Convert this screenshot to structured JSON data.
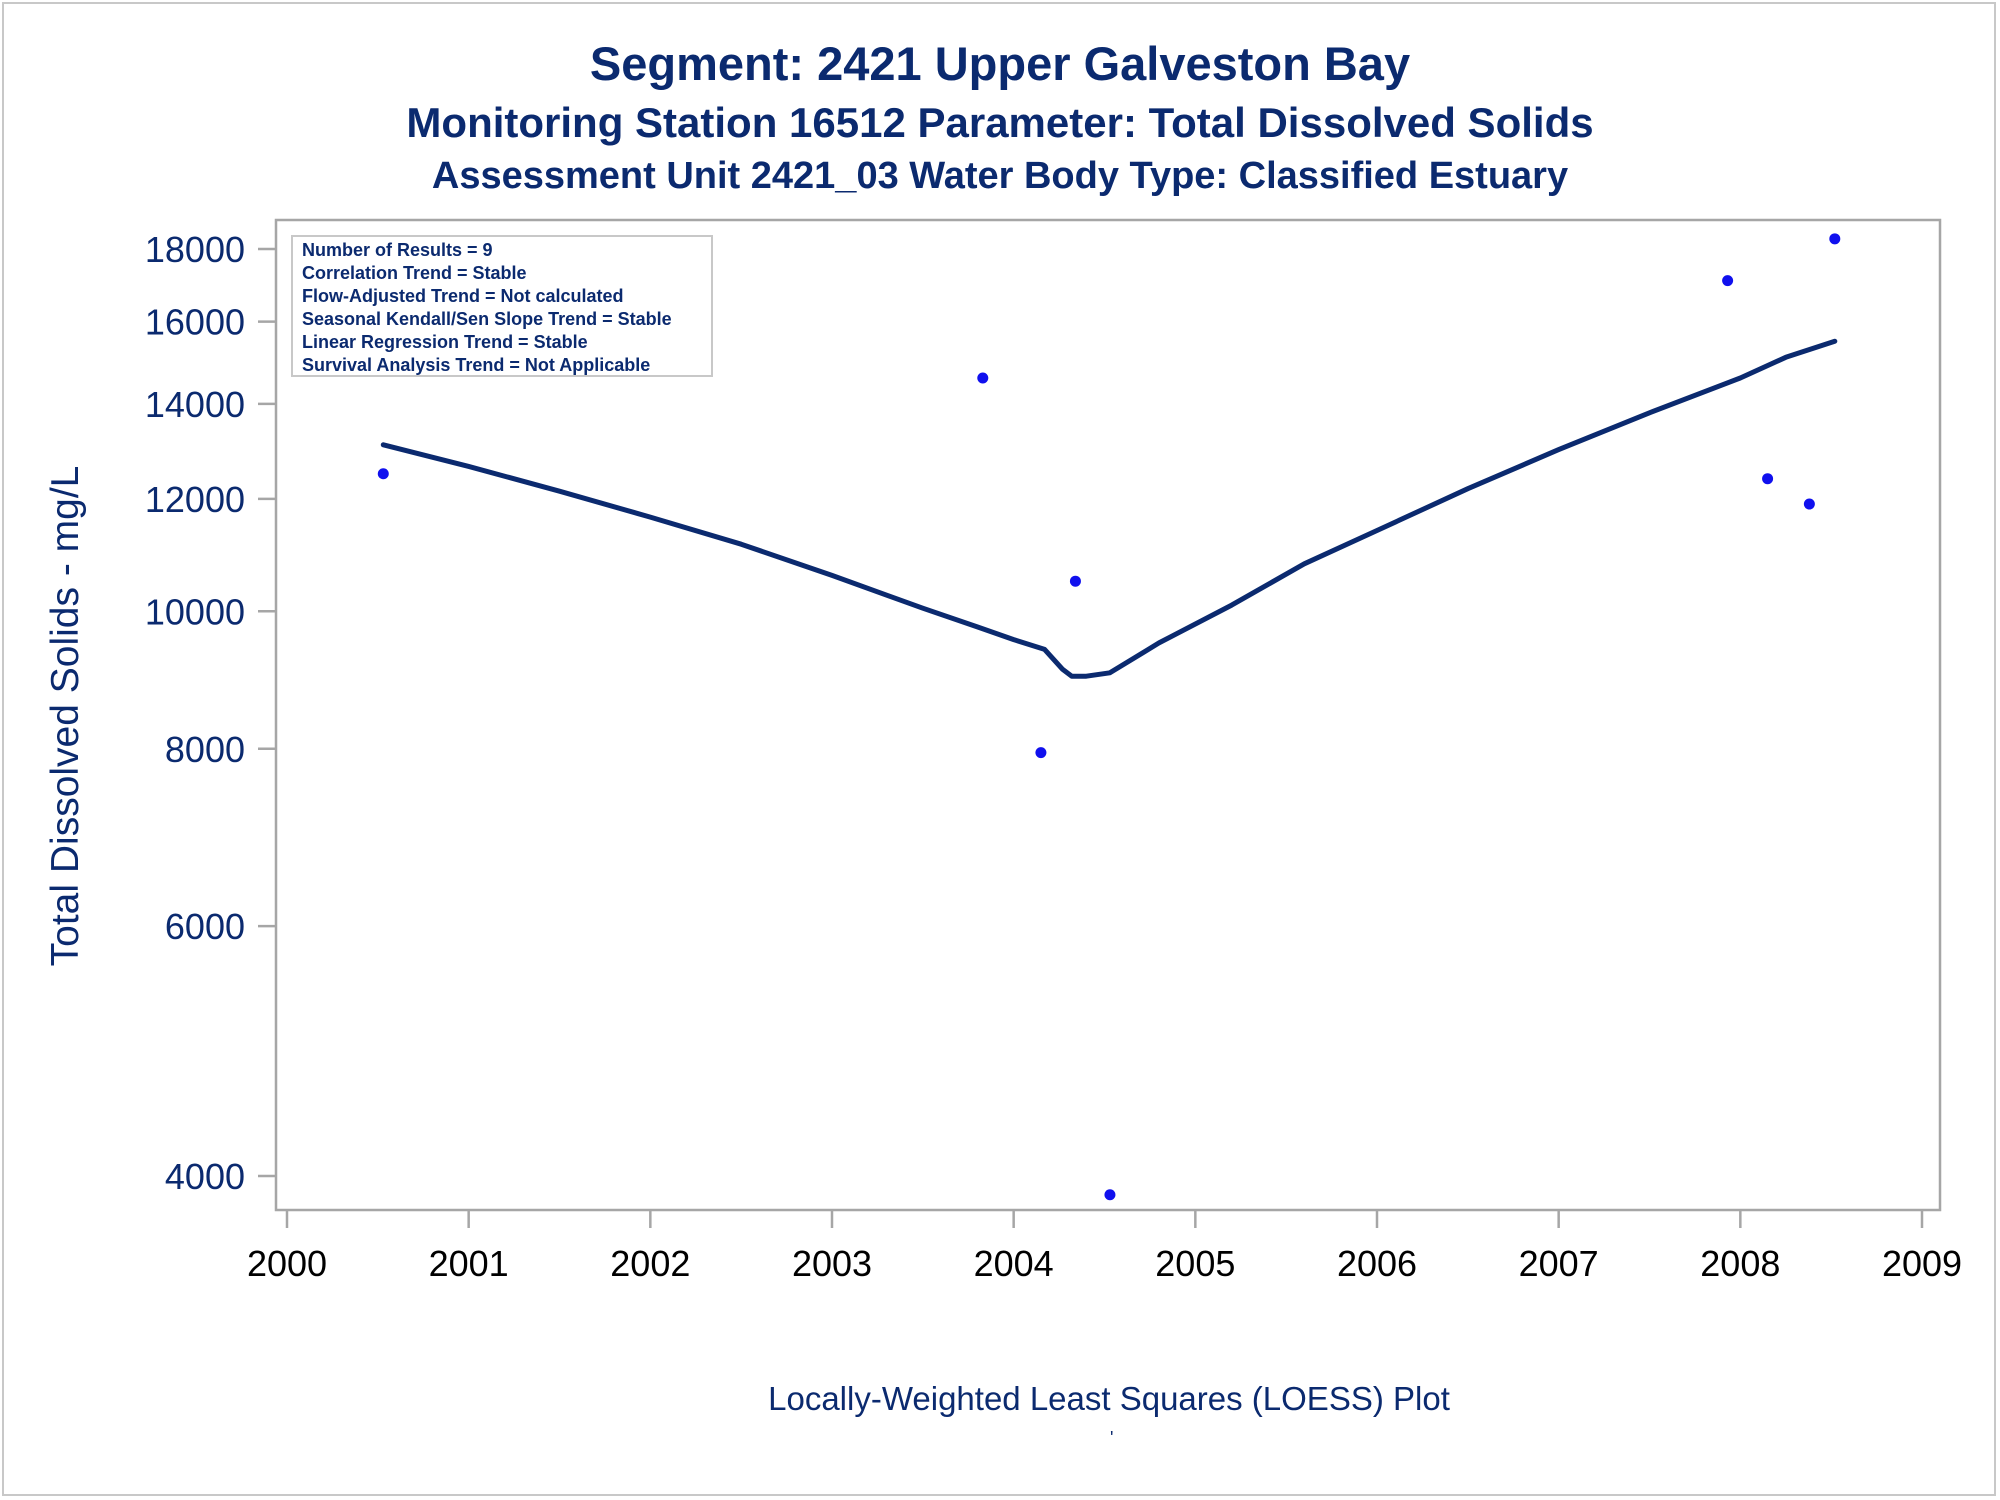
{
  "chart_data": {
    "type": "scatter",
    "title": "Segment: 2421  Upper Galveston Bay",
    "subtitle": "Monitoring Station 16512 Parameter: Total Dissolved Solids",
    "subtitle2": "Assessment Unit 2421_03   Water Body Type: Classified Estuary",
    "ylabel": "Total Dissolved Solids - mg/L",
    "footnote": "Locally-Weighted Least Squares (LOESS) Plot",
    "yscale": "log",
    "xlim": [
      2000,
      2009
    ],
    "ylim": [
      3800,
      19000
    ],
    "x_ticks": [
      2000,
      2001,
      2002,
      2003,
      2004,
      2005,
      2006,
      2007,
      2008,
      2009
    ],
    "y_ticks": [
      4000,
      6000,
      8000,
      10000,
      12000,
      14000,
      16000,
      18000
    ],
    "grid": false,
    "stats_box": {
      "placement": "top-left",
      "lines": [
        "Number of Results = 9",
        "Correlation Trend = Stable",
        "Flow-Adjusted Trend = Not calculated",
        "Seasonal Kendall/Sen Slope Trend = Stable",
        "Linear Regression Trend = Stable",
        "Survival Analysis Trend = Not Applicable"
      ]
    },
    "points": {
      "color": "#1010ee",
      "x": [
        2000.53,
        2003.83,
        2004.15,
        2004.34,
        2004.53,
        2007.93,
        2008.15,
        2008.38,
        2008.52
      ],
      "y": [
        12500,
        14600,
        7950,
        10500,
        3880,
        17100,
        12400,
        11900,
        18300
      ]
    },
    "loess": {
      "color": "#0b2a6f",
      "x": [
        2000.53,
        2001.0,
        2001.5,
        2002.0,
        2002.5,
        2003.0,
        2003.5,
        2003.8,
        2004.0,
        2004.17,
        2004.27,
        2004.32,
        2004.4,
        2004.53,
        2004.8,
        2005.2,
        2005.6,
        2006.0,
        2006.5,
        2007.0,
        2007.5,
        2008.0,
        2008.25,
        2008.52
      ],
      "y": [
        13100,
        12650,
        12150,
        11650,
        11150,
        10600,
        10050,
        9750,
        9550,
        9400,
        9100,
        9000,
        9000,
        9050,
        9500,
        10100,
        10800,
        11400,
        12200,
        13000,
        13800,
        14600,
        15100,
        15500
      ]
    }
  }
}
